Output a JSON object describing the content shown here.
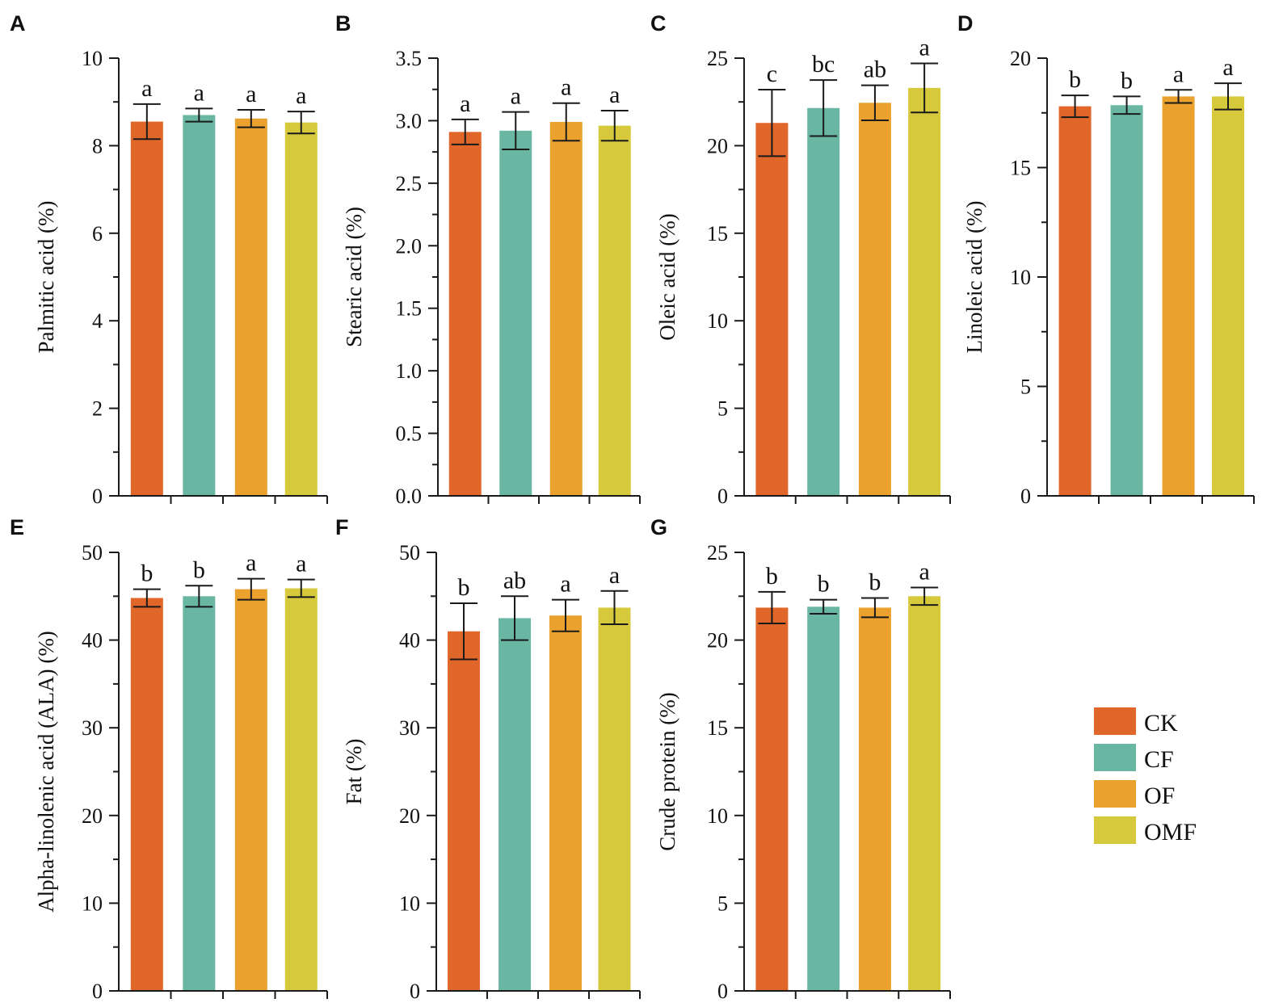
{
  "figure": {
    "legend": [
      {
        "name": "CK",
        "color": "#E1662A"
      },
      {
        "name": "CF",
        "color": "#69B7A3"
      },
      {
        "name": "OF",
        "color": "#EAA12E"
      },
      {
        "name": "OMF",
        "color": "#D6C93C"
      }
    ]
  },
  "chart_data": [
    {
      "panel": "A",
      "type": "bar",
      "categories": [
        "CK",
        "CF",
        "OF",
        "OMF"
      ],
      "values": [
        8.55,
        8.7,
        8.62,
        8.53
      ],
      "errors": [
        0.4,
        0.15,
        0.2,
        0.25
      ],
      "significance": [
        "a",
        "a",
        "a",
        "a"
      ],
      "xlabel": "",
      "ylabel": "Palmitic acid (%)",
      "ylim": [
        0,
        10
      ],
      "yticks": [
        "0",
        "2",
        "4",
        "6",
        "8",
        "10"
      ],
      "minor_tick_step": 1
    },
    {
      "panel": "B",
      "type": "bar",
      "categories": [
        "CK",
        "CF",
        "OF",
        "OMF"
      ],
      "values": [
        2.91,
        2.92,
        2.99,
        2.96
      ],
      "errors": [
        0.1,
        0.15,
        0.15,
        0.12
      ],
      "significance": [
        "a",
        "a",
        "a",
        "a"
      ],
      "xlabel": "",
      "ylabel": "Stearic acid (%)",
      "ylim": [
        0,
        3.5
      ],
      "yticks": [
        "0.0",
        "0.5",
        "1.0",
        "1.5",
        "2.0",
        "2.5",
        "3.0",
        "3.5"
      ],
      "minor_tick_step": 0.25
    },
    {
      "panel": "C",
      "type": "bar",
      "categories": [
        "CK",
        "CF",
        "OF",
        "OMF"
      ],
      "values": [
        21.3,
        22.15,
        22.45,
        23.3
      ],
      "errors": [
        1.9,
        1.6,
        1.0,
        1.4
      ],
      "significance": [
        "c",
        "bc",
        "ab",
        "a"
      ],
      "xlabel": "",
      "ylabel": "Oleic acid (%)",
      "ylim": [
        0,
        25
      ],
      "yticks": [
        "0",
        "5",
        "10",
        "15",
        "20",
        "25"
      ],
      "minor_tick_step": 2.5
    },
    {
      "panel": "D",
      "type": "bar",
      "categories": [
        "CK",
        "CF",
        "OF",
        "OMF"
      ],
      "values": [
        17.8,
        17.85,
        18.25,
        18.25
      ],
      "errors": [
        0.5,
        0.4,
        0.3,
        0.6
      ],
      "significance": [
        "b",
        "b",
        "a",
        "a"
      ],
      "xlabel": "",
      "ylabel": "Linoleic acid (%)",
      "ylim": [
        0,
        20
      ],
      "yticks": [
        "0",
        "5",
        "10",
        "15",
        "20"
      ],
      "minor_tick_step": 2.5
    },
    {
      "panel": "E",
      "type": "bar",
      "categories": [
        "CK",
        "CF",
        "OF",
        "OMF"
      ],
      "values": [
        44.8,
        45.0,
        45.8,
        45.9
      ],
      "errors": [
        1.0,
        1.2,
        1.2,
        1.0
      ],
      "significance": [
        "b",
        "b",
        "a",
        "a"
      ],
      "xlabel": "",
      "ylabel": "Alpha-linolenic acid (ALA) (%)",
      "ylim": [
        0,
        50
      ],
      "yticks": [
        "0",
        "10",
        "20",
        "30",
        "40",
        "50"
      ],
      "minor_tick_step": 5
    },
    {
      "panel": "F",
      "type": "bar",
      "categories": [
        "CK",
        "CF",
        "OF",
        "OMF"
      ],
      "values": [
        41.0,
        42.5,
        42.8,
        43.7
      ],
      "errors": [
        3.2,
        2.5,
        1.8,
        1.9
      ],
      "significance": [
        "b",
        "ab",
        "a",
        "a"
      ],
      "xlabel": "",
      "ylabel": "Fat (%)",
      "ylim": [
        0,
        50
      ],
      "yticks": [
        "0",
        "10",
        "20",
        "30",
        "40",
        "50"
      ],
      "minor_tick_step": 5
    },
    {
      "panel": "G",
      "type": "bar",
      "categories": [
        "CK",
        "CF",
        "OF",
        "OMF"
      ],
      "values": [
        21.85,
        21.9,
        21.85,
        22.5
      ],
      "errors": [
        0.9,
        0.4,
        0.55,
        0.5
      ],
      "significance": [
        "b",
        "b",
        "b",
        "a"
      ],
      "xlabel": "",
      "ylabel": "Crude protein (%)",
      "ylim": [
        0,
        25
      ],
      "yticks": [
        "0",
        "5",
        "10",
        "15",
        "20",
        "25"
      ],
      "minor_tick_step": 2.5
    }
  ]
}
